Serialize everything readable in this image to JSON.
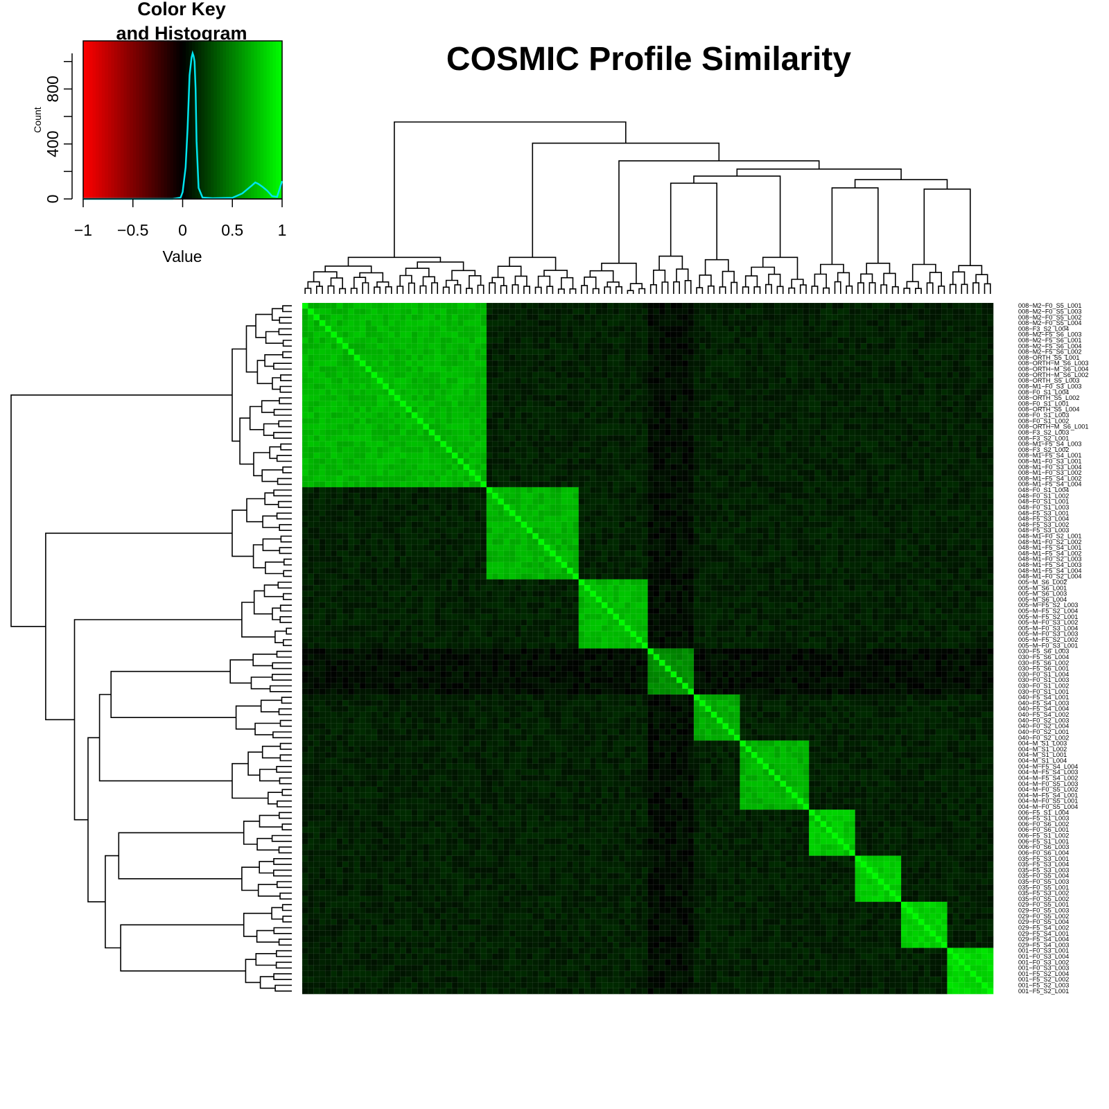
{
  "title": "COSMIC Profile Similarity",
  "colors": {
    "low": "#ff0000",
    "mid": "#000000",
    "high": "#00ff00",
    "histogram_line": "#00e5ee",
    "background": "#ffffff"
  },
  "color_key": {
    "title_line1": "Color Key",
    "title_line2": "and Histogram",
    "xlabel": "Value",
    "ylabel": "Count",
    "x_ticks": [
      "−1",
      "−0.5",
      "0",
      "0.5",
      "1"
    ],
    "y_ticks": [
      "0",
      "400",
      "800"
    ],
    "xlim": [
      -1,
      1
    ],
    "ylim": [
      0,
      1150
    ],
    "histogram": {
      "x": [
        -1,
        -0.1,
        -0.02,
        0.0,
        0.03,
        0.05,
        0.07,
        0.09,
        0.1,
        0.11,
        0.12,
        0.13,
        0.14,
        0.16,
        0.2,
        0.3,
        0.5,
        0.6,
        0.65,
        0.7,
        0.73,
        0.76,
        0.8,
        0.85,
        0.9,
        0.95,
        1.0
      ],
      "y": [
        0,
        0,
        10,
        50,
        230,
        520,
        900,
        1030,
        1060,
        1040,
        1000,
        800,
        420,
        80,
        10,
        5,
        8,
        40,
        70,
        100,
        120,
        110,
        90,
        60,
        20,
        15,
        130
      ]
    }
  },
  "chart_data": {
    "type": "heatmap",
    "title": "COSMIC Profile Similarity",
    "value_range": [
      -1,
      1
    ],
    "color_scale": [
      "#ff0000",
      "#000000",
      "#00ff00"
    ],
    "clusters": [
      {
        "name": "008",
        "size": 32,
        "within_similarity": 0.72
      },
      {
        "name": "048",
        "size": 16,
        "within_similarity": 0.7
      },
      {
        "name": "005",
        "size": 12,
        "within_similarity": 0.72
      },
      {
        "name": "030",
        "size": 8,
        "within_similarity": 0.55
      },
      {
        "name": "040",
        "size": 8,
        "within_similarity": 0.68
      },
      {
        "name": "004",
        "size": 12,
        "within_similarity": 0.7
      },
      {
        "name": "006",
        "size": 8,
        "within_similarity": 0.78
      },
      {
        "name": "035",
        "size": 8,
        "within_similarity": 0.8
      },
      {
        "name": "029",
        "size": 8,
        "within_similarity": 0.82
      },
      {
        "name": "001",
        "size": 8,
        "within_similarity": 0.85
      }
    ],
    "between_similarity": 0.12,
    "row_labels": [
      "008−M2−F0_S5_L001",
      "008−M2−F0_S5_L003",
      "008−M2−F0_S5_L002",
      "008−M2−F0_S5_L004",
      "008−F3_S2_L004",
      "008−M2−F5_S6_L003",
      "008−M2−F5_S6_L001",
      "008−M2−F5_S6_L004",
      "008−M2−F5_S6_L002",
      "008−ORTH_S5_L001",
      "008−ORTH−M_S6_L003",
      "008−ORTH−M_S6_L004",
      "008−ORTH−M_S6_L002",
      "008−ORTH_S5_L003",
      "008−M1−F0_S3_L003",
      "008−F0_S1_L004",
      "008−ORTH_S5_L002",
      "008−F0_S1_L001",
      "008−ORTH_S5_L004",
      "008−F0_S1_L003",
      "008−F0_S1_L002",
      "008−ORTH−M_S6_L001",
      "008−F3_S2_L003",
      "008−F3_S2_L001",
      "008−M1−F5_S4_L003",
      "008−F3_S2_L002",
      "008−M1−F5_S4_L001",
      "008−M1−F0_S3_L001",
      "008−M1−F0_S3_L004",
      "008−M1−F0_S3_L002",
      "008−M1−F5_S4_L002",
      "008−M1−F5_S4_L004",
      "048−F0_S1_L004",
      "048−F0_S1_L002",
      "048−F0_S1_L001",
      "048−F0_S1_L003",
      "048−F5_S3_L001",
      "048−F5_S3_L004",
      "048−F5_S3_L002",
      "048−F5_S3_L003",
      "048−M1−F0_S2_L001",
      "048−M1−F0_S2_L002",
      "048−M1−F5_S4_L001",
      "048−M1−F5_S4_L002",
      "048−M1−F0_S2_L003",
      "048−M1−F5_S4_L003",
      "048−M1−F5_S4_L004",
      "048−M1−F0_S2_L004",
      "005−M_S6_L002",
      "005−M_S6_L001",
      "005−M_S6_L003",
      "005−M_S6_L004",
      "005−M−F5_S2_L003",
      "005−M−F5_S2_L004",
      "005−M−F5_S2_L001",
      "005−M−F0_S3_L002",
      "005−M−F0_S3_L004",
      "005−M−F0_S3_L003",
      "005−M−F5_S2_L002",
      "005−M−F0_S3_L001",
      "030−F5_S6_L003",
      "030−F5_S6_L004",
      "030−F5_S6_L002",
      "030−F5_S6_L001",
      "030−F0_S1_L004",
      "030−F0_S1_L003",
      "030−F0_S1_L002",
      "030−F0_S1_L001",
      "040−F5_S4_L001",
      "040−F5_S4_L003",
      "040−F5_S4_L004",
      "040−F5_S4_L002",
      "040−F0_S2_L003",
      "040−F0_S2_L004",
      "040−F0_S2_L001",
      "040−F0_S2_L002",
      "004−M_S1_L003",
      "004−M_S1_L002",
      "004−M_S1_L001",
      "004−M_S1_L004",
      "004−M−F5_S4_L004",
      "004−M−F5_S4_L003",
      "004−M−F5_S4_L002",
      "004−M−F0_S5_L003",
      "004−M−F0_S5_L002",
      "004−M−F5_S4_L001",
      "004−M−F0_S5_L001",
      "004−M−F0_S5_L004",
      "006−F5_S1_L004",
      "006−F5_S1_L003",
      "006−F0_S6_L002",
      "006−F0_S6_L001",
      "006−F5_S1_L002",
      "006−F5_S1_L001",
      "006−F0_S6_L003",
      "006−F0_S6_L004",
      "035−F5_S3_L001",
      "035−F5_S3_L004",
      "035−F5_S3_L003",
      "035−F0_S5_L004",
      "035−F0_S5_L003",
      "035−F0_S5_L001",
      "035−F5_S3_L002",
      "035−F0_S5_L002",
      "029−F0_S5_L001",
      "029−F0_S5_L003",
      "029−F0_S5_L002",
      "029−F0_S5_L004",
      "029−F5_S4_L002",
      "029−F5_S4_L001",
      "029−F5_S4_L004",
      "029−F5_S4_L003",
      "001−F0_S3_L001",
      "001−F0_S3_L004",
      "001−F0_S3_L002",
      "001−F0_S3_L003",
      "001−F5_S2_L004",
      "001−F5_S2_L002",
      "001−F5_S2_L003",
      "001−F5_S2_L001"
    ]
  }
}
